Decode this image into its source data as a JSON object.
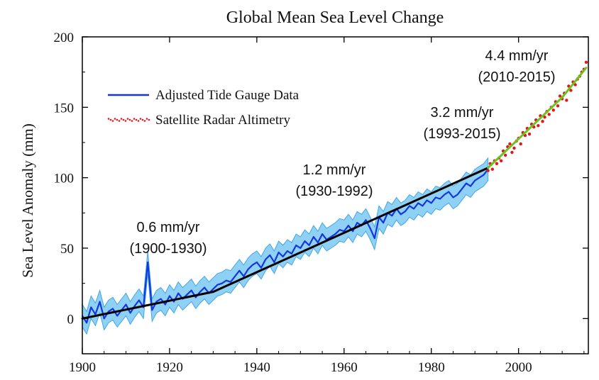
{
  "chart_data": {
    "type": "line",
    "title": "Global Mean Sea Level Change",
    "xlabel": "",
    "ylabel": "Sea Level Anomaly (mm)",
    "xlim": [
      1900,
      2016
    ],
    "ylim": [
      -25,
      200
    ],
    "xticks": [
      1900,
      1920,
      1940,
      1960,
      1980,
      2000
    ],
    "yticks": [
      0,
      50,
      100,
      150,
      200
    ],
    "grid": false,
    "legend_position": "upper-left",
    "colors": {
      "tide_line": "#1436e0",
      "tide_band": "#8fd0f5",
      "tide_band_edge": "#3fa7e8",
      "satellite": "#e3161b",
      "trend": "#000000",
      "trend_satellite": "#6cc21e"
    },
    "series": [
      {
        "name": "Adjusted Tide Gauge Data",
        "style": "line-with-uncertainty-band",
        "uncertainty_mm": 8,
        "x": [
          1900,
          1901,
          1902,
          1903,
          1904,
          1905,
          1906,
          1907,
          1908,
          1909,
          1910,
          1911,
          1912,
          1913,
          1914,
          1915,
          1916,
          1917,
          1918,
          1919,
          1920,
          1921,
          1922,
          1923,
          1924,
          1925,
          1926,
          1927,
          1928,
          1929,
          1930,
          1931,
          1932,
          1933,
          1934,
          1935,
          1936,
          1937,
          1938,
          1939,
          1940,
          1941,
          1942,
          1943,
          1944,
          1945,
          1946,
          1947,
          1948,
          1949,
          1950,
          1951,
          1952,
          1953,
          1954,
          1955,
          1956,
          1957,
          1958,
          1959,
          1960,
          1961,
          1962,
          1963,
          1964,
          1965,
          1966,
          1967,
          1968,
          1969,
          1970,
          1971,
          1972,
          1973,
          1974,
          1975,
          1976,
          1977,
          1978,
          1979,
          1980,
          1981,
          1982,
          1983,
          1984,
          1985,
          1986,
          1987,
          1988,
          1989,
          1990,
          1991,
          1992,
          1993
        ],
        "y": [
          2,
          -3,
          8,
          3,
          12,
          0,
          5,
          7,
          2,
          6,
          10,
          4,
          9,
          13,
          8,
          40,
          6,
          12,
          14,
          10,
          16,
          12,
          18,
          14,
          17,
          20,
          15,
          19,
          22,
          18,
          21,
          24,
          25,
          27,
          26,
          30,
          34,
          30,
          35,
          38,
          40,
          36,
          42,
          45,
          40,
          47,
          44,
          48,
          46,
          52,
          50,
          55,
          52,
          58,
          54,
          60,
          56,
          58,
          60,
          63,
          62,
          66,
          62,
          68,
          66,
          70,
          64,
          57,
          72,
          68,
          75,
          73,
          78,
          74,
          76,
          80,
          78,
          82,
          80,
          84,
          82,
          86,
          85,
          88,
          90,
          86,
          88,
          92,
          96,
          94,
          98,
          100,
          102,
          106
        ]
      },
      {
        "name": "Satellite Radar Altimetry",
        "style": "scatter",
        "x": [
          1993.0,
          1993.5,
          1994.0,
          1994.5,
          1995.0,
          1995.5,
          1996.0,
          1996.5,
          1997.0,
          1997.5,
          1998.0,
          1998.5,
          1999.0,
          1999.5,
          2000.0,
          2000.5,
          2001.0,
          2001.5,
          2002.0,
          2002.5,
          2003.0,
          2003.5,
          2004.0,
          2004.5,
          2005.0,
          2005.5,
          2006.0,
          2006.5,
          2007.0,
          2007.5,
          2008.0,
          2008.5,
          2009.0,
          2009.5,
          2010.0,
          2010.5,
          2011.0,
          2011.5,
          2012.0,
          2012.5,
          2013.0,
          2013.5,
          2014.0,
          2014.5,
          2015.0,
          2015.5
        ],
        "y": [
          105,
          110,
          106,
          112,
          110,
          114,
          112,
          119,
          116,
          122,
          124,
          118,
          121,
          126,
          128,
          124,
          132,
          130,
          135,
          131,
          138,
          136,
          141,
          137,
          144,
          140,
          143,
          147,
          145,
          150,
          148,
          154,
          151,
          158,
          156,
          160,
          155,
          165,
          162,
          168,
          166,
          170,
          172,
          175,
          177,
          182
        ]
      }
    ],
    "trends": [
      {
        "label": "0.6 mm/yr",
        "period": "(1900-1930)",
        "x": [
          1900,
          1930
        ],
        "y": [
          0,
          19
        ]
      },
      {
        "label": "1.2 mm/yr",
        "period": "(1930-1992)",
        "x": [
          1930,
          1993
        ],
        "y": [
          19,
          107
        ]
      },
      {
        "label": "3.2 mm/yr",
        "period": "(1993-2015)",
        "x": [
          1993,
          2010
        ],
        "y": [
          107,
          157
        ]
      },
      {
        "label": "4.4 mm/yr",
        "period": "(2010-2015)",
        "x": [
          2010,
          2015.5
        ],
        "y": [
          157,
          178
        ]
      }
    ]
  }
}
